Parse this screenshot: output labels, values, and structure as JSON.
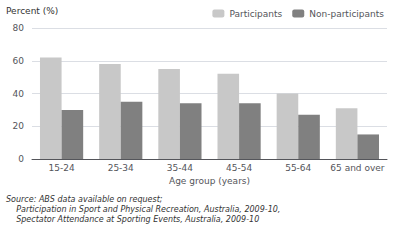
{
  "chart_data": {
    "type": "bar",
    "xlabel": "Age group (years)",
    "ylabel": "Percent (%)",
    "categories": [
      "15-24",
      "25-34",
      "35-44",
      "45-54",
      "55-64",
      "65 and over"
    ],
    "series": [
      {
        "name": "Participants",
        "color": "#c8c8c8",
        "values": [
          62,
          58,
          55,
          52,
          40,
          31
        ]
      },
      {
        "name": "Non-participants",
        "color": "#808080",
        "values": [
          30,
          35,
          34,
          34,
          27,
          15
        ]
      }
    ],
    "ylim": [
      0,
      80
    ],
    "yticks": [
      0,
      20,
      40,
      60,
      80
    ],
    "grid": true,
    "legend": "upper right",
    "annotations": [
      "Source: ABS data available on request;",
      "    Participation in Sport and Physical Recreation, Australia, 2009-10,",
      "    Spectator Attendance at Sporting Events, Australia, 2009-10"
    ]
  }
}
